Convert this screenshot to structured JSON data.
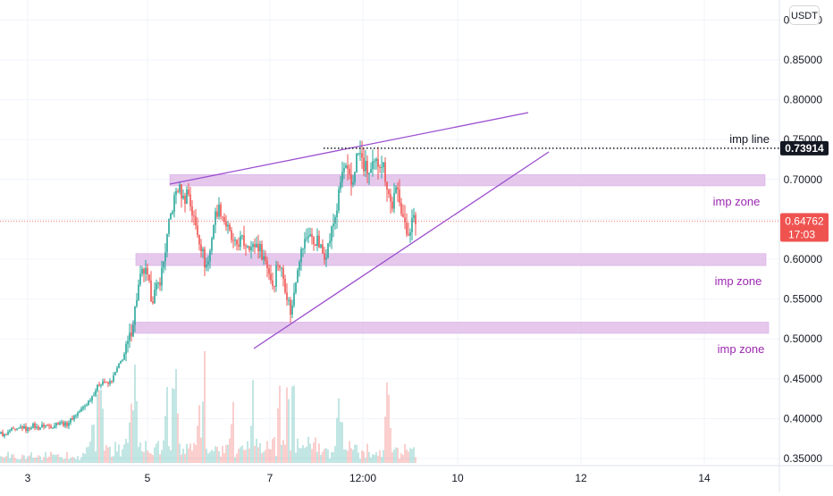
{
  "currency_button": "USDT",
  "chart_data": {
    "type": "candlestick",
    "title": "",
    "xlabel": "",
    "ylabel": "",
    "ylim": [
      0.345,
      0.895
    ],
    "y_ticks": [
      0.35,
      0.4,
      0.45,
      0.5,
      0.55,
      0.6,
      0.65,
      0.7,
      0.75,
      0.8,
      0.85,
      0.9
    ],
    "y_tick_labels": [
      "0.35000",
      "0.40000",
      "0.45000",
      "0.50000",
      "0.55000",
      "0.60000",
      "0.65000",
      "0.70000",
      "0.75000",
      "0.80000",
      "0.85000",
      "0.90000"
    ],
    "x_tick_labels": [
      "3",
      "5",
      "7",
      "12:00",
      "10",
      "12",
      "14"
    ],
    "grid": true,
    "last_price": "0.64762",
    "countdown": "17:03",
    "imp_line_price": "0.73914",
    "annotations": {
      "imp_line_label": "imp line",
      "zone_labels": [
        "imp zone",
        "imp zone",
        "imp zone"
      ]
    },
    "zones": [
      {
        "low": 0.692,
        "high": 0.706
      },
      {
        "low": 0.592,
        "high": 0.607
      },
      {
        "low": 0.507,
        "high": 0.521
      }
    ],
    "colors": {
      "up": "#26a69a",
      "down": "#ef5350",
      "zone": "#e1bee7",
      "trendline": "#9c4fd0",
      "zone_text": "#9c27b0",
      "last_price_bg": "#ef5350",
      "imp_line_bg": "#131722"
    },
    "anchors": [
      [
        0,
        0.382
      ],
      [
        6,
        0.378
      ],
      [
        12,
        0.386
      ],
      [
        18,
        0.384
      ],
      [
        24,
        0.39
      ],
      [
        30,
        0.386
      ],
      [
        36,
        0.392
      ],
      [
        42,
        0.388
      ],
      [
        50,
        0.392
      ],
      [
        58,
        0.39
      ],
      [
        66,
        0.396
      ],
      [
        74,
        0.392
      ],
      [
        82,
        0.402
      ],
      [
        90,
        0.41
      ],
      [
        98,
        0.42
      ],
      [
        104,
        0.43
      ],
      [
        110,
        0.442
      ],
      [
        116,
        0.448
      ],
      [
        120,
        0.442
      ],
      [
        126,
        0.45
      ],
      [
        132,
        0.465
      ],
      [
        138,
        0.478
      ],
      [
        142,
        0.49
      ],
      [
        146,
        0.505
      ],
      [
        150,
        0.53
      ],
      [
        154,
        0.56
      ],
      [
        158,
        0.58
      ],
      [
        162,
        0.586
      ],
      [
        166,
        0.57
      ],
      [
        170,
        0.55
      ],
      [
        174,
        0.56
      ],
      [
        178,
        0.57
      ],
      [
        182,
        0.59
      ],
      [
        186,
        0.62
      ],
      [
        190,
        0.65
      ],
      [
        194,
        0.67
      ],
      [
        198,
        0.69
      ],
      [
        202,
        0.686
      ],
      [
        206,
        0.672
      ],
      [
        210,
        0.69
      ],
      [
        214,
        0.662
      ],
      [
        218,
        0.645
      ],
      [
        222,
        0.63
      ],
      [
        226,
        0.612
      ],
      [
        230,
        0.59
      ],
      [
        234,
        0.6
      ],
      [
        238,
        0.64
      ],
      [
        242,
        0.66
      ],
      [
        246,
        0.664
      ],
      [
        250,
        0.652
      ],
      [
        254,
        0.64
      ],
      [
        258,
        0.628
      ],
      [
        262,
        0.615
      ],
      [
        266,
        0.62
      ],
      [
        270,
        0.625
      ],
      [
        274,
        0.618
      ],
      [
        278,
        0.622
      ],
      [
        282,
        0.612
      ],
      [
        286,
        0.62
      ],
      [
        290,
        0.615
      ],
      [
        294,
        0.605
      ],
      [
        298,
        0.596
      ],
      [
        302,
        0.58
      ],
      [
        306,
        0.565
      ],
      [
        310,
        0.598
      ],
      [
        314,
        0.59
      ],
      [
        318,
        0.572
      ],
      [
        322,
        0.55
      ],
      [
        326,
        0.53
      ],
      [
        330,
        0.57
      ],
      [
        334,
        0.6
      ],
      [
        338,
        0.612
      ],
      [
        342,
        0.625
      ],
      [
        346,
        0.635
      ],
      [
        350,
        0.62
      ],
      [
        354,
        0.625
      ],
      [
        358,
        0.615
      ],
      [
        362,
        0.605
      ],
      [
        366,
        0.612
      ],
      [
        370,
        0.63
      ],
      [
        374,
        0.65
      ],
      [
        378,
        0.67
      ],
      [
        382,
        0.705
      ],
      [
        386,
        0.715
      ],
      [
        390,
        0.7
      ],
      [
        394,
        0.69
      ],
      [
        398,
        0.725
      ],
      [
        402,
        0.735
      ],
      [
        406,
        0.718
      ],
      [
        410,
        0.712
      ],
      [
        414,
        0.706
      ],
      [
        418,
        0.715
      ],
      [
        422,
        0.72
      ],
      [
        426,
        0.726
      ],
      [
        430,
        0.712
      ],
      [
        434,
        0.688
      ],
      [
        438,
        0.665
      ],
      [
        442,
        0.68
      ],
      [
        446,
        0.686
      ],
      [
        450,
        0.66
      ],
      [
        454,
        0.63
      ],
      [
        458,
        0.64
      ],
      [
        462,
        0.648
      ],
      [
        465,
        0.6476
      ]
    ]
  }
}
